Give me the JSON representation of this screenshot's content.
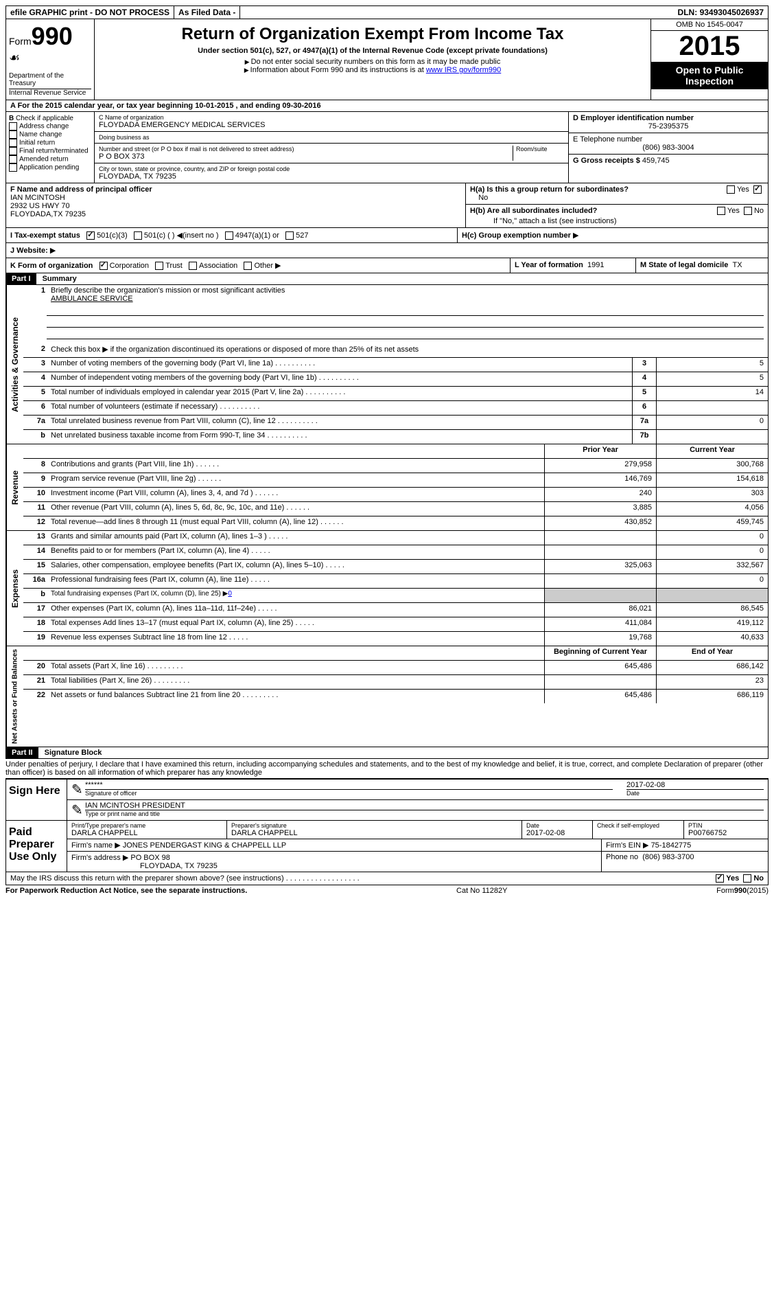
{
  "topbar": {
    "efile": "efile GRAPHIC print - DO NOT PROCESS",
    "asfiled": "As Filed Data -",
    "dln_label": "DLN:",
    "dln": "93493045026937"
  },
  "header": {
    "form_label": "Form",
    "form_number": "990",
    "dept": "Department of the Treasury",
    "irs": "Internal Revenue Service",
    "title": "Return of Organization Exempt From Income Tax",
    "subtitle": "Under section 501(c), 527, or 4947(a)(1) of the Internal Revenue Code (except private foundations)",
    "note1": "Do not enter social security numbers on this form as it may be made public",
    "note2": "Information about Form 990 and its instructions is at",
    "link": "www IRS gov/form990",
    "omb": "OMB No 1545-0047",
    "year": "2015",
    "inspection": "Open to Public Inspection"
  },
  "sectionA": {
    "text": "A  For the 2015 calendar year, or tax year beginning 10-01-2015    , and ending 09-30-2016"
  },
  "sectionB": {
    "label": "B",
    "check_label": "Check if applicable",
    "items": [
      "Address change",
      "Name change",
      "Initial return",
      "Final return/terminated",
      "Amended return",
      "Application pending"
    ]
  },
  "sectionC": {
    "name_label": "C Name of organization",
    "name": "FLOYDADA EMERGENCY MEDICAL SERVICES",
    "dba_label": "Doing business as",
    "dba": "",
    "street_label": "Number and street (or P O box if mail is not delivered to street address)",
    "room_label": "Room/suite",
    "street": "P O BOX 373",
    "city_label": "City or town, state or province, country, and ZIP or foreign postal code",
    "city": "FLOYDADA, TX  79235"
  },
  "sectionD": {
    "label": "D Employer identification number",
    "value": "75-2395375"
  },
  "sectionE": {
    "label": "E Telephone number",
    "value": "(806) 983-3004"
  },
  "sectionG": {
    "label": "G Gross receipts $",
    "value": "459,745"
  },
  "sectionF": {
    "label": "F Name and address of principal officer",
    "name": "IAN MCINTOSH",
    "street": "2932 US HWY 70",
    "city": "FLOYDADA,TX 79235"
  },
  "sectionH": {
    "a": "H(a)  Is this a group return for subordinates?",
    "a_no": "No",
    "b": "H(b)  Are all subordinates included?",
    "b_note": "If \"No,\" attach a list (see instructions)",
    "c": "H(c)  Group exemption number"
  },
  "sectionI": {
    "label": "I   Tax-exempt status",
    "opt1": "501(c)(3)",
    "opt2": "501(c) (  )",
    "opt2_note": "(insert no )",
    "opt3": "4947(a)(1) or",
    "opt4": "527"
  },
  "sectionJ": {
    "label": "J   Website:"
  },
  "sectionK": {
    "label": "K Form of organization",
    "opts": [
      "Corporation",
      "Trust",
      "Association",
      "Other"
    ]
  },
  "sectionL": {
    "label": "L Year of formation",
    "value": "1991"
  },
  "sectionM": {
    "label": "M State of legal domicile",
    "value": "TX"
  },
  "part1": {
    "header": "Part I",
    "title": "Summary",
    "line1_label": "1",
    "line1_text": "Briefly describe the organization's mission or most significant activities",
    "mission": "AMBULANCE SERVICE",
    "line2_label": "2",
    "line2_text": "Check this box ▶      if the organization discontinued its operations or disposed of more than 25% of its net assets",
    "governance_label": "Activities & Governance",
    "revenue_label": "Revenue",
    "expenses_label": "Expenses",
    "netassets_label": "Net Assets or Fund Balances",
    "rows_gov": [
      {
        "n": "3",
        "t": "Number of voting members of the governing body (Part VI, line 1a)",
        "k": "3",
        "v": "5"
      },
      {
        "n": "4",
        "t": "Number of independent voting members of the governing body (Part VI, line 1b)",
        "k": "4",
        "v": "5"
      },
      {
        "n": "5",
        "t": "Total number of individuals employed in calendar year 2015 (Part V, line 2a)",
        "k": "5",
        "v": "14"
      },
      {
        "n": "6",
        "t": "Total number of volunteers (estimate if necessary)",
        "k": "6",
        "v": ""
      },
      {
        "n": "7a",
        "t": "Total unrelated business revenue from Part VIII, column (C), line 12",
        "k": "7a",
        "v": "0"
      },
      {
        "n": "b",
        "t": "Net unrelated business taxable income from Form 990-T, line 34",
        "k": "7b",
        "v": ""
      }
    ],
    "prior_year": "Prior Year",
    "current_year": "Current Year",
    "rows_rev": [
      {
        "n": "8",
        "t": "Contributions and grants (Part VIII, line 1h)",
        "p": "279,958",
        "c": "300,768"
      },
      {
        "n": "9",
        "t": "Program service revenue (Part VIII, line 2g)",
        "p": "146,769",
        "c": "154,618"
      },
      {
        "n": "10",
        "t": "Investment income (Part VIII, column (A), lines 3, 4, and 7d )",
        "p": "240",
        "c": "303"
      },
      {
        "n": "11",
        "t": "Other revenue (Part VIII, column (A), lines 5, 6d, 8c, 9c, 10c, and 11e)",
        "p": "3,885",
        "c": "4,056"
      },
      {
        "n": "12",
        "t": "Total revenue—add lines 8 through 11 (must equal Part VIII, column (A), line 12)",
        "p": "430,852",
        "c": "459,745"
      }
    ],
    "rows_exp": [
      {
        "n": "13",
        "t": "Grants and similar amounts paid (Part IX, column (A), lines 1–3 )",
        "p": "",
        "c": "0"
      },
      {
        "n": "14",
        "t": "Benefits paid to or for members (Part IX, column (A), line 4)",
        "p": "",
        "c": "0"
      },
      {
        "n": "15",
        "t": "Salaries, other compensation, employee benefits (Part IX, column (A), lines 5–10)",
        "p": "325,063",
        "c": "332,567"
      },
      {
        "n": "16a",
        "t": "Professional fundraising fees (Part IX, column (A), line 11e)",
        "p": "",
        "c": "0"
      },
      {
        "n": "b",
        "t": "Total fundraising expenses (Part IX, column (D), line 25) ▶",
        "p": "",
        "c": "",
        "special": "0"
      },
      {
        "n": "17",
        "t": "Other expenses (Part IX, column (A), lines 11a–11d, 11f–24e)",
        "p": "86,021",
        "c": "86,545"
      },
      {
        "n": "18",
        "t": "Total expenses Add lines 13–17 (must equal Part IX, column (A), line 25)",
        "p": "411,084",
        "c": "419,112"
      },
      {
        "n": "19",
        "t": "Revenue less expenses Subtract line 18 from line 12",
        "p": "19,768",
        "c": "40,633"
      }
    ],
    "begin_year": "Beginning of Current Year",
    "end_year": "End of Year",
    "rows_net": [
      {
        "n": "20",
        "t": "Total assets (Part X, line 16)",
        "p": "645,486",
        "c": "686,142"
      },
      {
        "n": "21",
        "t": "Total liabilities (Part X, line 26)",
        "p": "",
        "c": "23"
      },
      {
        "n": "22",
        "t": "Net assets or fund balances Subtract line 21 from line 20",
        "p": "645,486",
        "c": "686,119"
      }
    ]
  },
  "part2": {
    "header": "Part II",
    "title": "Signature Block",
    "perjury": "Under penalties of perjury, I declare that I have examined this return, including accompanying schedules and statements, and to the best of my knowledge and belief, it is true, correct, and complete Declaration of preparer (other than officer) is based on all information of which preparer has any knowledge",
    "sign_here": "Sign Here",
    "stars": "******",
    "sig_officer": "Signature of officer",
    "date_label": "Date",
    "date": "2017-02-08",
    "name_title": "IAN MCINTOSH PRESIDENT",
    "type_label": "Type or print name and title",
    "paid_label": "Paid Preparer Use Only",
    "prep_name_label": "Print/Type preparer's name",
    "prep_name": "DARLA CHAPPELL",
    "prep_sig_label": "Preparer's signature",
    "prep_sig": "DARLA CHAPPELL",
    "prep_date_label": "Date",
    "prep_date": "2017-02-08",
    "check_self": "Check         if self-employed",
    "ptin_label": "PTIN",
    "ptin": "P00766752",
    "firm_name_label": "Firm's name    ▶",
    "firm_name": "JONES PENDERGAST KING & CHAPPELL LLP",
    "firm_ein_label": "Firm's EIN ▶",
    "firm_ein": "75-1842775",
    "firm_addr_label": "Firm's address ▶",
    "firm_addr1": "PO BOX 98",
    "firm_addr2": "FLOYDADA, TX  79235",
    "phone_label": "Phone no",
    "phone": "(806) 983-3700",
    "discuss": "May the IRS discuss this return with the preparer shown above? (see instructions)",
    "yes": "Yes",
    "no": "No"
  },
  "footer": {
    "paperwork": "For Paperwork Reduction Act Notice, see the separate instructions.",
    "cat": "Cat No 11282Y",
    "form": "Form",
    "formno": "990",
    "year": "(2015)"
  }
}
